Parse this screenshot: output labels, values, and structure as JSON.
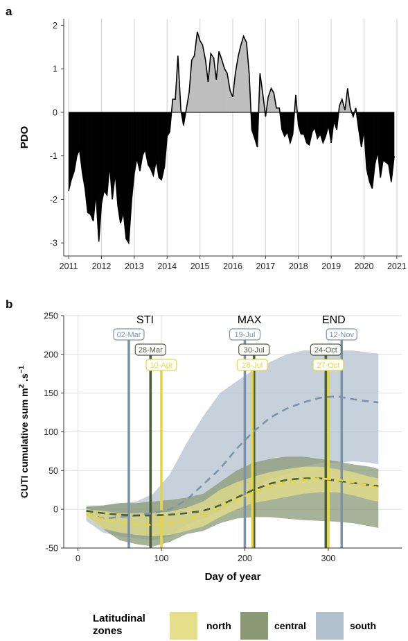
{
  "chart_data": [
    {
      "panel": "a",
      "type": "area",
      "ylabel": "PDO",
      "xlabel": "",
      "xlim": [
        2010.85,
        2021.15
      ],
      "ylim": [
        -3.3,
        2.15
      ],
      "x_ticks": [
        "2011",
        "2012",
        "2013",
        "2014",
        "2015",
        "2016",
        "2017",
        "2018",
        "2019",
        "2020",
        "2021"
      ],
      "y_ticks": [
        "-3",
        "-2",
        "-1",
        "0",
        "1",
        "2"
      ],
      "grid": "vertical at years",
      "fill_positive": "#bebebe",
      "fill_negative": "#000000",
      "series": [
        {
          "name": "",
          "points": [
            [
              2011.0,
              -1.8
            ],
            [
              2011.08,
              -1.55
            ],
            [
              2011.17,
              -1.35
            ],
            [
              2011.25,
              -1.0
            ],
            [
              2011.33,
              -0.85
            ],
            [
              2011.42,
              -1.4
            ],
            [
              2011.5,
              -1.75
            ],
            [
              2011.58,
              -2.3
            ],
            [
              2011.67,
              -2.35
            ],
            [
              2011.75,
              -2.5
            ],
            [
              2011.83,
              -1.85
            ],
            [
              2011.92,
              -2.97
            ],
            [
              2012.0,
              -2.1
            ],
            [
              2012.08,
              -1.8
            ],
            [
              2012.17,
              -1.9
            ],
            [
              2012.25,
              -1.2
            ],
            [
              2012.33,
              -2.0
            ],
            [
              2012.42,
              -1.4
            ],
            [
              2012.5,
              -2.15
            ],
            [
              2012.58,
              -2.55
            ],
            [
              2012.67,
              -2.3
            ],
            [
              2012.75,
              -2.9
            ],
            [
              2012.83,
              -3.0
            ],
            [
              2012.92,
              -2.0
            ],
            [
              2013.0,
              -1.4
            ],
            [
              2013.08,
              -1.05
            ],
            [
              2013.17,
              -1.35
            ],
            [
              2013.25,
              -1.0
            ],
            [
              2013.33,
              -0.85
            ],
            [
              2013.42,
              -1.2
            ],
            [
              2013.5,
              -1.3
            ],
            [
              2013.58,
              -1.45
            ],
            [
              2013.67,
              -1.1
            ],
            [
              2013.75,
              -1.5
            ],
            [
              2013.83,
              -1.55
            ],
            [
              2013.92,
              -1.25
            ],
            [
              2014.0,
              -0.55
            ],
            [
              2014.08,
              -0.45
            ],
            [
              2014.17,
              0.3
            ],
            [
              2014.25,
              0.3
            ],
            [
              2014.33,
              1.3
            ],
            [
              2014.42,
              0.05
            ],
            [
              2014.5,
              -0.3
            ],
            [
              2014.58,
              0.05
            ],
            [
              2014.67,
              0.45
            ],
            [
              2014.75,
              1.2
            ],
            [
              2014.83,
              1.3
            ],
            [
              2014.92,
              1.85
            ],
            [
              2015.0,
              1.65
            ],
            [
              2015.08,
              1.55
            ],
            [
              2015.17,
              1.2
            ],
            [
              2015.25,
              0.7
            ],
            [
              2015.33,
              1.35
            ],
            [
              2015.42,
              1.25
            ],
            [
              2015.5,
              0.75
            ],
            [
              2015.58,
              1.4
            ],
            [
              2015.67,
              1.2
            ],
            [
              2015.75,
              1.0
            ],
            [
              2015.83,
              0.9
            ],
            [
              2015.92,
              0.5
            ],
            [
              2016.0,
              0.35
            ],
            [
              2016.08,
              0.9
            ],
            [
              2016.17,
              1.3
            ],
            [
              2016.25,
              1.55
            ],
            [
              2016.33,
              1.75
            ],
            [
              2016.42,
              1.6
            ],
            [
              2016.5,
              0.9
            ],
            [
              2016.58,
              -0.4
            ],
            [
              2016.67,
              -0.6
            ],
            [
              2016.75,
              -0.8
            ],
            [
              2016.83,
              0.9
            ],
            [
              2016.92,
              0.4
            ],
            [
              2017.0,
              -0.1
            ],
            [
              2017.08,
              0.35
            ],
            [
              2017.17,
              0.55
            ],
            [
              2017.25,
              0.45
            ],
            [
              2017.33,
              0.1
            ],
            [
              2017.42,
              0.1
            ],
            [
              2017.5,
              -0.4
            ],
            [
              2017.58,
              -0.55
            ],
            [
              2017.67,
              -0.45
            ],
            [
              2017.75,
              -0.7
            ],
            [
              2017.83,
              -0.5
            ],
            [
              2017.92,
              0.4
            ],
            [
              2018.0,
              -0.3
            ],
            [
              2018.08,
              -0.5
            ],
            [
              2018.17,
              -0.5
            ],
            [
              2018.25,
              -0.7
            ],
            [
              2018.33,
              -0.75
            ],
            [
              2018.42,
              -0.45
            ],
            [
              2018.5,
              -0.35
            ],
            [
              2018.58,
              -0.6
            ],
            [
              2018.67,
              -0.5
            ],
            [
              2018.75,
              -0.7
            ],
            [
              2018.83,
              -0.55
            ],
            [
              2018.92,
              -0.3
            ],
            [
              2019.0,
              -0.7
            ],
            [
              2019.08,
              -0.2
            ],
            [
              2019.17,
              -0.4
            ],
            [
              2019.25,
              0.15
            ],
            [
              2019.33,
              0.3
            ],
            [
              2019.42,
              0.05
            ],
            [
              2019.5,
              0.55
            ],
            [
              2019.58,
              0.1
            ],
            [
              2019.67,
              -0.1
            ],
            [
              2019.75,
              0.1
            ],
            [
              2019.83,
              -0.35
            ],
            [
              2019.92,
              -0.8
            ],
            [
              2020.0,
              -0.4
            ],
            [
              2020.08,
              -1.3
            ],
            [
              2020.17,
              -1.6
            ],
            [
              2020.25,
              -1.75
            ],
            [
              2020.33,
              -1.2
            ],
            [
              2020.42,
              -0.9
            ],
            [
              2020.5,
              -1.5
            ],
            [
              2020.58,
              -1.1
            ],
            [
              2020.67,
              -1.15
            ],
            [
              2020.75,
              -1.2
            ],
            [
              2020.83,
              -1.6
            ],
            [
              2020.92,
              -1.0
            ]
          ]
        }
      ]
    },
    {
      "panel": "b",
      "type": "line",
      "xlabel": "Day of year",
      "ylabel": "CUTI cumulative sum m² .s⁻¹",
      "ylabel_parts": {
        "prefix": "CUTI cumulative sum m",
        "sup1": "2",
        "mid": " .s",
        "sup2": "−1"
      },
      "xlim": [
        -17,
        388
      ],
      "ylim": [
        -50,
        250
      ],
      "x_ticks": [
        0,
        100,
        200,
        300
      ],
      "y_ticks": [
        -50,
        0,
        50,
        100,
        150,
        200,
        250
      ],
      "grid": true,
      "x": [
        10,
        30,
        50,
        70,
        90,
        110,
        130,
        150,
        170,
        190,
        210,
        230,
        250,
        270,
        290,
        310,
        330,
        350,
        360
      ],
      "series": [
        {
          "name": "south",
          "color": "#7b92a8",
          "band_color": "#b3c1cf",
          "mean": [
            -5,
            -12,
            -10,
            -8,
            -5,
            0,
            12,
            32,
            52,
            78,
            100,
            118,
            130,
            138,
            144,
            146,
            142,
            139,
            138
          ],
          "upper": [
            5,
            5,
            8,
            10,
            20,
            45,
            85,
            120,
            150,
            165,
            180,
            190,
            200,
            205,
            205,
            205,
            205,
            202,
            201
          ],
          "lower": [
            -15,
            -30,
            -35,
            -37,
            -40,
            -35,
            -20,
            -12,
            -2,
            10,
            28,
            38,
            45,
            55,
            60,
            60,
            62,
            60,
            58
          ]
        },
        {
          "name": "central",
          "color": "#4a5e3e",
          "band_color": "#8a9a75",
          "mean": [
            -2,
            -5,
            -7,
            -8,
            -8,
            -7,
            -5,
            -2,
            5,
            15,
            25,
            33,
            38,
            40,
            40,
            37,
            34,
            31,
            30
          ],
          "upper": [
            3,
            5,
            8,
            8,
            10,
            12,
            15,
            20,
            35,
            50,
            60,
            65,
            68,
            68,
            65,
            62,
            58,
            55,
            52
          ],
          "lower": [
            -8,
            -25,
            -40,
            -45,
            -48,
            -42,
            -32,
            -28,
            -18,
            -12,
            -10,
            -10,
            -12,
            -14,
            -15,
            -16,
            -18,
            -22,
            -24
          ]
        },
        {
          "name": "north",
          "color": "#e6d640",
          "band_color": "#e5df8a",
          "mean": [
            -5,
            -13,
            -17,
            -19,
            -20,
            -18,
            -14,
            -7,
            2,
            12,
            22,
            30,
            35,
            38,
            40,
            38,
            35,
            30,
            28
          ],
          "upper": [
            0,
            -2,
            -5,
            -5,
            -5,
            -3,
            2,
            10,
            25,
            35,
            42,
            48,
            52,
            55,
            55,
            52,
            48,
            42,
            40
          ],
          "lower": [
            -10,
            -25,
            -30,
            -33,
            -35,
            -33,
            -28,
            -22,
            -10,
            0,
            8,
            12,
            16,
            20,
            22,
            22,
            18,
            12,
            10
          ]
        }
      ],
      "period_headers": {
        "sti": "STI",
        "max": "MAX",
        "end": "END"
      },
      "vlines": [
        {
          "group": "STI",
          "zone": "south",
          "day": 61,
          "label": "02-Mar",
          "color": "#7b92a8",
          "row": 0
        },
        {
          "group": "STI",
          "zone": "central",
          "day": 87,
          "label": "28-Mar",
          "color": "#4a5e3e",
          "row": 1
        },
        {
          "group": "STI",
          "zone": "north",
          "day": 100,
          "label": "10-Apr",
          "color": "#e6d640",
          "row": 2
        },
        {
          "group": "MAX",
          "zone": "south",
          "day": 200,
          "label": "19-Jul",
          "color": "#7b92a8",
          "row": 0
        },
        {
          "group": "MAX",
          "zone": "central",
          "day": 211,
          "label": "30-Jul",
          "color": "#4a5e3e",
          "row": 1
        },
        {
          "group": "MAX",
          "zone": "north",
          "day": 209,
          "label": "28-Jul",
          "color": "#e6d640",
          "row": 2
        },
        {
          "group": "END",
          "zone": "south",
          "day": 316,
          "label": "12-Nov",
          "color": "#7b92a8",
          "row": 0
        },
        {
          "group": "END",
          "zone": "central",
          "day": 297,
          "label": "24-Oct",
          "color": "#4a5e3e",
          "row": 1
        },
        {
          "group": "END",
          "zone": "north",
          "day": 300,
          "label": "27-Oct",
          "color": "#e6d640",
          "row": 2
        }
      ]
    }
  ],
  "panel_labels": {
    "a": "a",
    "b": "b"
  },
  "legend": {
    "title_line1": "Latitudinal",
    "title_line2": "zones",
    "items": [
      {
        "name": "north",
        "color": "#e5df8a"
      },
      {
        "name": "central",
        "color": "#8a9a75"
      },
      {
        "name": "south",
        "color": "#b3c1cf"
      }
    ]
  }
}
